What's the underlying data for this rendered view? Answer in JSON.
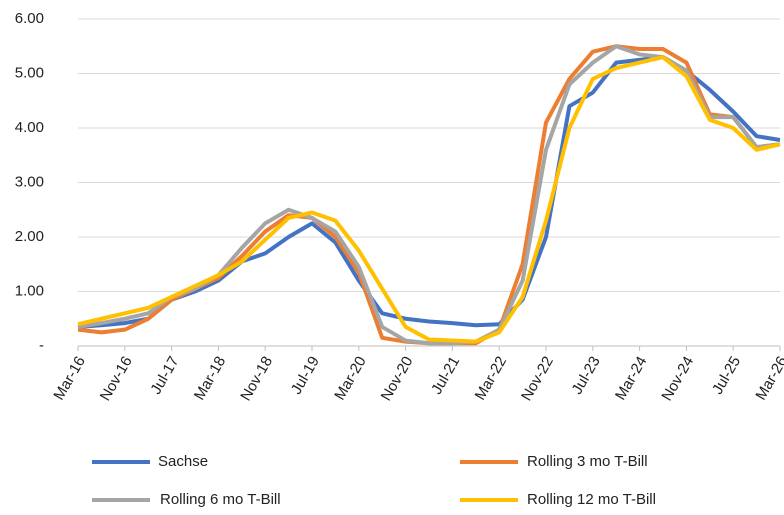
{
  "chart_data": {
    "type": "line",
    "categories": [
      "Mar-16",
      null,
      "Nov-16",
      null,
      "Jul-17",
      null,
      "Mar-18",
      null,
      "Nov-18",
      null,
      "Jul-19",
      null,
      "Mar-20",
      null,
      "Nov-20",
      null,
      "Jul-21",
      null,
      "Mar-22",
      null,
      "Nov-22",
      null,
      "Jul-23",
      null,
      "Mar-24",
      null,
      "Nov-24",
      null,
      "Jul-25",
      null,
      "Mar-26"
    ],
    "series": [
      {
        "name": "Sachse",
        "color": "#4472c4",
        "values": [
          0.35,
          0.38,
          0.42,
          0.5,
          0.85,
          1.0,
          1.2,
          1.55,
          1.7,
          2.0,
          2.25,
          1.9,
          1.2,
          0.6,
          0.5,
          0.45,
          0.42,
          0.38,
          0.4,
          0.85,
          2.0,
          4.4,
          4.65,
          5.2,
          5.25,
          5.3,
          5.05,
          4.7,
          4.3,
          3.85,
          3.78
        ]
      },
      {
        "name": "Rolling 3 mo T-Bill",
        "color": "#ed7d31",
        "values": [
          0.3,
          0.25,
          0.3,
          0.5,
          0.85,
          1.05,
          1.25,
          1.65,
          2.1,
          2.4,
          2.35,
          2.0,
          1.35,
          0.15,
          0.08,
          0.05,
          0.05,
          0.05,
          0.3,
          1.5,
          4.1,
          4.9,
          5.4,
          5.5,
          5.45,
          5.45,
          5.2,
          4.25,
          4.2,
          3.65,
          3.7
        ]
      },
      {
        "name": "Rolling 6 mo T-Bill",
        "color": "#a5a5a5",
        "values": [
          0.35,
          0.42,
          0.5,
          0.6,
          0.9,
          1.05,
          1.3,
          1.8,
          2.25,
          2.5,
          2.35,
          2.1,
          1.45,
          0.35,
          0.1,
          0.05,
          0.05,
          0.08,
          0.3,
          1.2,
          3.6,
          4.8,
          5.2,
          5.5,
          5.35,
          5.3,
          5.05,
          4.2,
          4.2,
          3.65,
          3.7
        ]
      },
      {
        "name": "Rolling 12 mo T-Bill",
        "color": "#ffc000",
        "values": [
          0.4,
          0.5,
          0.6,
          0.7,
          0.9,
          1.1,
          1.3,
          1.55,
          1.95,
          2.35,
          2.45,
          2.3,
          1.75,
          1.05,
          0.35,
          0.12,
          0.1,
          0.08,
          0.25,
          0.9,
          2.3,
          4.0,
          4.9,
          5.1,
          5.2,
          5.3,
          4.95,
          4.15,
          4.0,
          3.6,
          3.7
        ]
      }
    ],
    "ylim": [
      0,
      6
    ],
    "yticks": [
      {
        "value": 0,
        "label": "-"
      },
      {
        "value": 1,
        "label": "1.00"
      },
      {
        "value": 2,
        "label": "2.00"
      },
      {
        "value": 3,
        "label": "3.00"
      },
      {
        "value": 4,
        "label": "4.00"
      },
      {
        "value": 5,
        "label": "5.00"
      },
      {
        "value": 6,
        "label": "6.00"
      }
    ],
    "grid": true
  }
}
